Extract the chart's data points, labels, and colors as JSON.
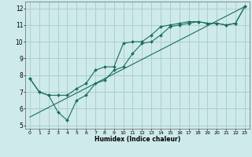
{
  "title": "",
  "xlabel": "Humidex (Indice chaleur)",
  "xlim": [
    -0.5,
    23.5
  ],
  "ylim": [
    4.8,
    12.4
  ],
  "background_color": "#ceeaea",
  "grid_color": "#aecece",
  "line_color": "#1a6e60",
  "xticks": [
    0,
    1,
    2,
    3,
    4,
    5,
    6,
    7,
    8,
    9,
    10,
    11,
    12,
    13,
    14,
    15,
    16,
    17,
    18,
    19,
    20,
    21,
    22,
    23
  ],
  "yticks": [
    5,
    6,
    7,
    8,
    9,
    10,
    11,
    12
  ],
  "line1_x": [
    0,
    1,
    2,
    3,
    4,
    5,
    6,
    7,
    8,
    9,
    10,
    11,
    12,
    13,
    14,
    15,
    16,
    17,
    18,
    19,
    20,
    21,
    22,
    23
  ],
  "line1_y": [
    7.8,
    7.0,
    6.8,
    5.8,
    5.3,
    6.5,
    6.8,
    7.5,
    7.7,
    8.3,
    8.5,
    9.3,
    9.9,
    10.0,
    10.4,
    10.9,
    11.0,
    11.1,
    11.2,
    11.1,
    11.1,
    11.0,
    11.1,
    12.1
  ],
  "line2_x": [
    0,
    1,
    2,
    3,
    4,
    5,
    6,
    7,
    8,
    9,
    10,
    11,
    12,
    13,
    14,
    15,
    16,
    17,
    18,
    19,
    20,
    21,
    22,
    23
  ],
  "line2_y": [
    7.8,
    7.0,
    6.8,
    6.8,
    6.8,
    7.2,
    7.5,
    8.3,
    8.5,
    8.5,
    9.9,
    10.0,
    10.0,
    10.4,
    10.9,
    11.0,
    11.1,
    11.2,
    11.2,
    11.1,
    11.1,
    11.0,
    11.1,
    12.1
  ],
  "line3_x": [
    0,
    23
  ],
  "line3_y": [
    5.5,
    12.1
  ]
}
